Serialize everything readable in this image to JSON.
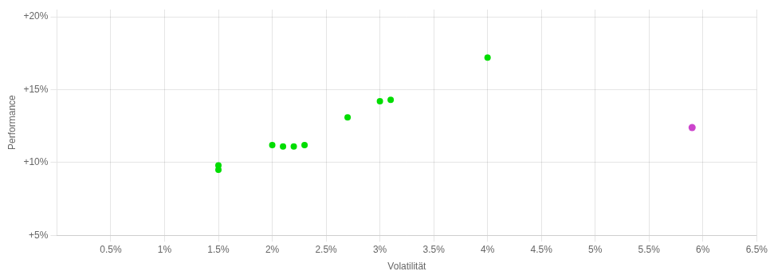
{
  "chart_data": {
    "type": "scatter",
    "x_label": "Volatilität",
    "y_label": "Performance",
    "xlim": [
      0.0,
      0.065
    ],
    "ylim": [
      0.05,
      0.205
    ],
    "xticks": [
      {
        "value": 0.005,
        "label": "0.5%"
      },
      {
        "value": 0.01,
        "label": "1%"
      },
      {
        "value": 0.015,
        "label": "1.5%"
      },
      {
        "value": 0.02,
        "label": "2%"
      },
      {
        "value": 0.025,
        "label": "2.5%"
      },
      {
        "value": 0.03,
        "label": "3%"
      },
      {
        "value": 0.035,
        "label": "3.5%"
      },
      {
        "value": 0.04,
        "label": "4%"
      },
      {
        "value": 0.045,
        "label": "4.5%"
      },
      {
        "value": 0.05,
        "label": "5%"
      },
      {
        "value": 0.055,
        "label": "5.5%"
      },
      {
        "value": 0.06,
        "label": "6%"
      },
      {
        "value": 0.065,
        "label": "6.5%"
      }
    ],
    "yticks": [
      {
        "value": 0.05,
        "label": "+5%"
      },
      {
        "value": 0.1,
        "label": "+10%"
      },
      {
        "value": 0.15,
        "label": "+15%"
      },
      {
        "value": 0.2,
        "label": "+20%"
      }
    ],
    "grid": true,
    "series": [
      {
        "color": "#00dd00",
        "x": [
          0.015,
          0.015,
          0.02,
          0.021,
          0.022,
          0.023,
          0.027,
          0.03,
          0.031,
          0.04
        ],
        "values": [
          0.098,
          0.095,
          0.112,
          0.111,
          0.111,
          0.112,
          0.131,
          0.142,
          0.143,
          0.172
        ]
      },
      {
        "color": "#cc44cc",
        "x": [
          0.059
        ],
        "values": [
          0.124
        ]
      }
    ]
  }
}
